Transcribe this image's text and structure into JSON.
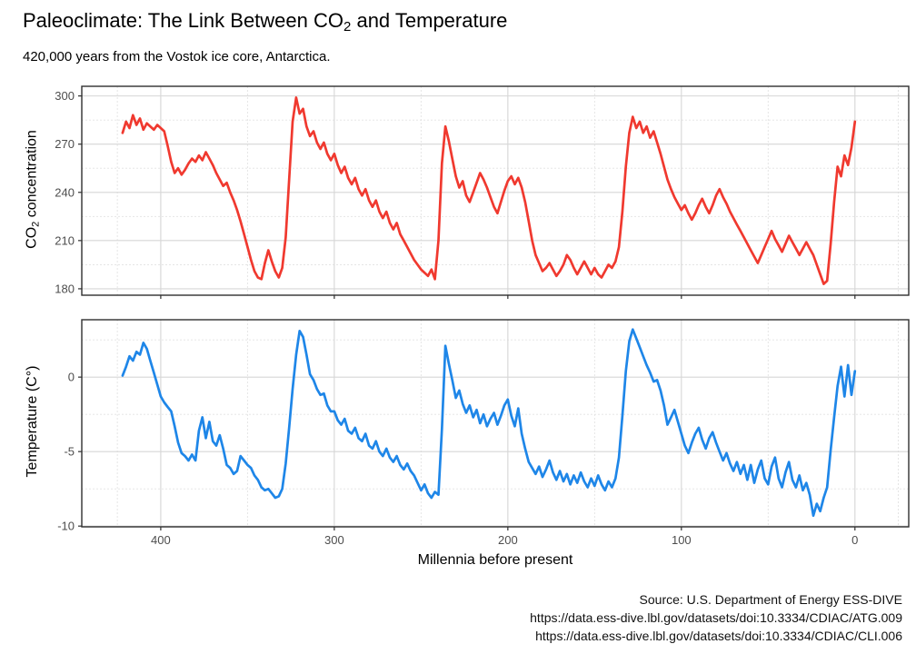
{
  "figure": {
    "title_pre": "Paleoclimate: The Link Between CO",
    "title_sub": "2",
    "title_post": " and Temperature",
    "subtitle": "420,000 years from the Vostok ice core, Antarctica.",
    "x_axis_label": "Millennia before present",
    "caption_line1": "Source: U.S. Department of Energy ESS-DIVE",
    "caption_line2": "https://data.ess-dive.lbl.gov/datasets/doi:10.3334/CDIAC/ATG.009",
    "caption_line3": "https://data.ess-dive.lbl.gov/datasets/doi:10.3334/CDIAC/CLI.006"
  },
  "style": {
    "co2_line_color": "#F0392F",
    "temperature_line_color": "#1E86E8",
    "grid_major_color": "#D6D6D6",
    "grid_minor_color": "#E2E2E2",
    "panel_border_color": "#2F2F2F",
    "tick_color": "#2F2F2F",
    "tick_label_color": "#4D4D4D",
    "panel_background": "#FFFFFF"
  },
  "chart_data": [
    {
      "type": "line",
      "series_name": "CO2 concentration",
      "ylabel_pre": "CO",
      "ylabel_sub": "2",
      "ylabel_post": " concentration",
      "xlabel": "Millennia before present",
      "legend": "none",
      "grid": "major solid, minor dashed",
      "x_ticks": [
        400,
        300,
        200,
        100,
        0
      ],
      "x_tick_labels": [
        "400",
        "300",
        "200",
        "100",
        "0"
      ],
      "x_minor": [
        425,
        350,
        250,
        150,
        50,
        -25
      ],
      "xlim": [
        445.5,
        -31
      ],
      "y_ticks": [
        300,
        270,
        240,
        210,
        180
      ],
      "y_tick_labels": [
        "300",
        "270",
        "240",
        "210",
        "180"
      ],
      "y_minor": [
        285,
        255,
        225,
        195
      ],
      "ylim": [
        306,
        176
      ],
      "x_start": 422,
      "x_step": -2,
      "x_unit": "millennia before present",
      "values": [
        277,
        284,
        280,
        288,
        282,
        286,
        279,
        283,
        281,
        279,
        282,
        280,
        278,
        269,
        259,
        252,
        255,
        251,
        254,
        258,
        261,
        259,
        263,
        260,
        265,
        261,
        257,
        252,
        248,
        244,
        246,
        240,
        235,
        229,
        222,
        214,
        206,
        198,
        191,
        187,
        186,
        196,
        204,
        197,
        191,
        187,
        193,
        212,
        248,
        284,
        299,
        289,
        292,
        281,
        275,
        278,
        271,
        267,
        271,
        264,
        260,
        264,
        257,
        252,
        256,
        249,
        245,
        249,
        242,
        238,
        242,
        235,
        231,
        235,
        228,
        224,
        228,
        221,
        217,
        221,
        214,
        210,
        206,
        202,
        198,
        195,
        192,
        190,
        188,
        192,
        186,
        210,
        258,
        281,
        272,
        261,
        250,
        243,
        247,
        238,
        234,
        240,
        246,
        252,
        248,
        243,
        237,
        231,
        227,
        234,
        241,
        247,
        250,
        245,
        249,
        243,
        234,
        222,
        210,
        201,
        196,
        191,
        193,
        196,
        192,
        188,
        191,
        195,
        201,
        198,
        193,
        189,
        193,
        197,
        193,
        189,
        193,
        189,
        187,
        191,
        195,
        193,
        197,
        206,
        228,
        256,
        277,
        287,
        280,
        284,
        277,
        281,
        274,
        278,
        271,
        264,
        256,
        248,
        242,
        237,
        233,
        229,
        232,
        227,
        223,
        227,
        232,
        236,
        231,
        227,
        232,
        238,
        242,
        237,
        233,
        228,
        224,
        220,
        216,
        212,
        208,
        204,
        200,
        196,
        201,
        206,
        211,
        216,
        211,
        207,
        203,
        208,
        213,
        209,
        205,
        201,
        205,
        209,
        205,
        201,
        195,
        189,
        183,
        185,
        208,
        234,
        256,
        250,
        263,
        257,
        268,
        284
      ]
    },
    {
      "type": "line",
      "series_name": "Temperature (C°)",
      "ylabel": "Temperature (C°)",
      "xlabel": "Millennia before present",
      "legend": "none",
      "grid": "major solid, minor dashed",
      "x_ticks": [
        400,
        300,
        200,
        100,
        0
      ],
      "x_tick_labels": [
        "400",
        "300",
        "200",
        "100",
        "0"
      ],
      "x_minor": [
        425,
        350,
        250,
        150,
        50,
        -25
      ],
      "xlim": [
        445.5,
        -31
      ],
      "y_ticks": [
        0,
        -5,
        -10
      ],
      "y_tick_labels": [
        "0",
        "-5",
        "-10"
      ],
      "y_minor": [
        2.5,
        -2.5,
        -7.5
      ],
      "ylim": [
        3.85,
        -10.05
      ],
      "x_start": 422,
      "x_step": -2,
      "x_unit": "millennia before present",
      "values": [
        0.1,
        0.7,
        1.4,
        1.1,
        1.7,
        1.5,
        2.3,
        1.9,
        1.1,
        0.3,
        -0.5,
        -1.3,
        -1.7,
        -2.0,
        -2.3,
        -3.3,
        -4.4,
        -5.1,
        -5.3,
        -5.6,
        -5.2,
        -5.6,
        -3.6,
        -2.7,
        -4.1,
        -3.0,
        -4.3,
        -4.6,
        -3.9,
        -4.8,
        -5.9,
        -6.1,
        -6.5,
        -6.3,
        -5.3,
        -5.6,
        -5.9,
        -6.1,
        -6.6,
        -6.9,
        -7.4,
        -7.6,
        -7.5,
        -7.8,
        -8.1,
        -8.0,
        -7.5,
        -5.8,
        -3.4,
        -0.8,
        1.5,
        3.1,
        2.7,
        1.5,
        0.2,
        -0.2,
        -0.8,
        -1.2,
        -1.1,
        -1.9,
        -2.3,
        -2.3,
        -2.9,
        -3.2,
        -2.8,
        -3.6,
        -3.8,
        -3.4,
        -4.1,
        -4.3,
        -3.8,
        -4.6,
        -4.8,
        -4.3,
        -5.0,
        -5.3,
        -4.8,
        -5.4,
        -5.7,
        -5.3,
        -5.9,
        -6.2,
        -5.8,
        -6.3,
        -6.6,
        -7.1,
        -7.6,
        -7.2,
        -7.8,
        -8.1,
        -7.7,
        -7.9,
        -3.5,
        2.1,
        0.9,
        -0.2,
        -1.4,
        -0.9,
        -1.8,
        -2.4,
        -1.9,
        -2.7,
        -2.2,
        -3.1,
        -2.5,
        -3.3,
        -2.8,
        -2.4,
        -3.2,
        -2.6,
        -1.9,
        -1.5,
        -2.6,
        -3.3,
        -2.1,
        -3.8,
        -4.8,
        -5.7,
        -6.1,
        -6.5,
        -6.0,
        -6.7,
        -6.2,
        -5.6,
        -6.4,
        -6.9,
        -6.3,
        -7.0,
        -6.5,
        -7.2,
        -6.6,
        -7.1,
        -6.4,
        -7.0,
        -7.4,
        -6.8,
        -7.3,
        -6.6,
        -7.2,
        -7.6,
        -7.0,
        -7.4,
        -6.8,
        -5.4,
        -2.6,
        0.4,
        2.4,
        3.2,
        2.6,
        2.0,
        1.4,
        0.8,
        0.3,
        -0.3,
        -0.2,
        -0.9,
        -1.9,
        -3.2,
        -2.7,
        -2.2,
        -3.0,
        -3.8,
        -4.6,
        -5.1,
        -4.4,
        -3.8,
        -3.4,
        -4.2,
        -4.8,
        -4.1,
        -3.7,
        -4.4,
        -5.0,
        -5.6,
        -5.1,
        -5.8,
        -6.3,
        -5.7,
        -6.5,
        -5.9,
        -6.9,
        -5.9,
        -7.1,
        -6.2,
        -5.6,
        -6.8,
        -7.2,
        -6.0,
        -5.4,
        -6.8,
        -7.4,
        -6.4,
        -5.7,
        -6.9,
        -7.4,
        -6.6,
        -7.6,
        -7.1,
        -7.9,
        -9.3,
        -8.5,
        -9.0,
        -8.1,
        -7.4,
        -4.9,
        -2.7,
        -0.6,
        0.7,
        -1.3,
        0.8,
        -1.2,
        0.4
      ]
    }
  ]
}
